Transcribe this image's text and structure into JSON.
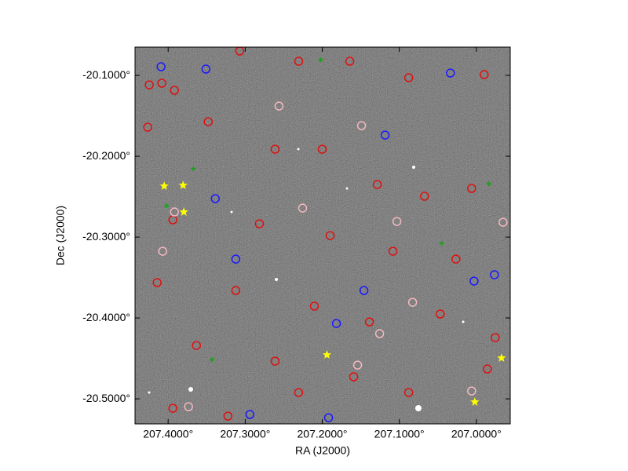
{
  "chart_data": {
    "type": "scatter",
    "xlabel": "RA (J2000)",
    "ylabel": "Dec (J2000)",
    "xlim": [
      207.443,
      206.956
    ],
    "ylim": [
      -20.531,
      -20.065
    ],
    "xticks": [
      {
        "value": 207.4,
        "label": "207.4000°"
      },
      {
        "value": 207.3,
        "label": "207.3000°"
      },
      {
        "value": 207.2,
        "label": "207.2000°"
      },
      {
        "value": 207.1,
        "label": "207.1000°"
      },
      {
        "value": 207.0,
        "label": "207.0000°"
      }
    ],
    "yticks": [
      {
        "value": -20.1,
        "label": "-20.1000°"
      },
      {
        "value": -20.2,
        "label": "-20.2000°"
      },
      {
        "value": -20.3,
        "label": "-20.3000°"
      },
      {
        "value": -20.4,
        "label": "-20.4000°"
      },
      {
        "value": -20.5,
        "label": "-20.5000°"
      }
    ],
    "series": [
      {
        "color": "#e01010",
        "marker": "circle",
        "x": [
          207.4245,
          207.4082,
          207.3918,
          207.3071,
          207.2306,
          207.1643,
          207.0878,
          206.9898,
          207.4265,
          207.348,
          207.2612,
          207.2,
          207.1286,
          207.0673,
          207.0061,
          207.3939,
          207.2816,
          207.1898,
          207.1082,
          207.0265,
          207.4143,
          207.3122,
          207.2102,
          207.1388,
          207.0469,
          206.9755,
          207.3633,
          207.2612,
          207.1592,
          207.0878,
          206.9857,
          207.3939,
          207.2306,
          207.3224
        ],
        "values": [
          -20.1117,
          -20.1097,
          -20.1184,
          -20.0699,
          -20.0825,
          -20.0825,
          -20.1029,
          -20.099,
          -20.1641,
          -20.1573,
          -20.1913,
          -20.1913,
          -20.235,
          -20.2495,
          -20.2398,
          -20.2786,
          -20.2835,
          -20.2981,
          -20.3175,
          -20.3272,
          -20.3563,
          -20.366,
          -20.3854,
          -20.4049,
          -20.3951,
          -20.4243,
          -20.434,
          -20.4534,
          -20.4728,
          -20.4922,
          -20.4631,
          -20.5117,
          -20.4922,
          -20.5214
        ]
      },
      {
        "color": "#f4b8c0",
        "marker": "circle",
        "x": [
          207.3918,
          207.2561,
          207.149,
          207.1031,
          206.9653,
          207.4071,
          207.0827,
          207.1255,
          207.3735,
          207.0061,
          207.1541,
          207.2255
        ],
        "values": [
          -20.2689,
          -20.1379,
          -20.1621,
          -20.2806,
          -20.2816,
          -20.3175,
          -20.3806,
          -20.4194,
          -20.5097,
          -20.4903,
          -20.4583,
          -20.2641
        ]
      },
      {
        "color": "#1a1aff",
        "marker": "circle",
        "x": [
          207.4092,
          207.351,
          207.3388,
          207.3122,
          207.1816,
          207.1459,
          207.1184,
          207.0337,
          207.003,
          206.9765,
          207.2939,
          207.1918
        ],
        "values": [
          -20.0893,
          -20.0922,
          -20.2524,
          -20.3272,
          -20.4068,
          -20.366,
          -20.1738,
          -20.0971,
          -20.3544,
          -20.3466,
          -20.5194,
          -20.5233
        ]
      },
      {
        "color": "#20a020",
        "marker": "cross",
        "x": [
          207.202,
          207.3673,
          207.402,
          207.0449,
          206.9837,
          207.3429
        ],
        "values": [
          -20.0806,
          -20.2155,
          -20.2612,
          -20.3078,
          -20.234,
          -20.4515
        ]
      },
      {
        "color": "#ffff00",
        "marker": "star",
        "x": [
          207.4051,
          207.3806,
          207.3796,
          207.1939,
          206.9673,
          207.002
        ],
        "values": [
          -20.2369,
          -20.2359,
          -20.2689,
          -20.4456,
          -20.4495,
          -20.5039
        ]
      }
    ]
  }
}
